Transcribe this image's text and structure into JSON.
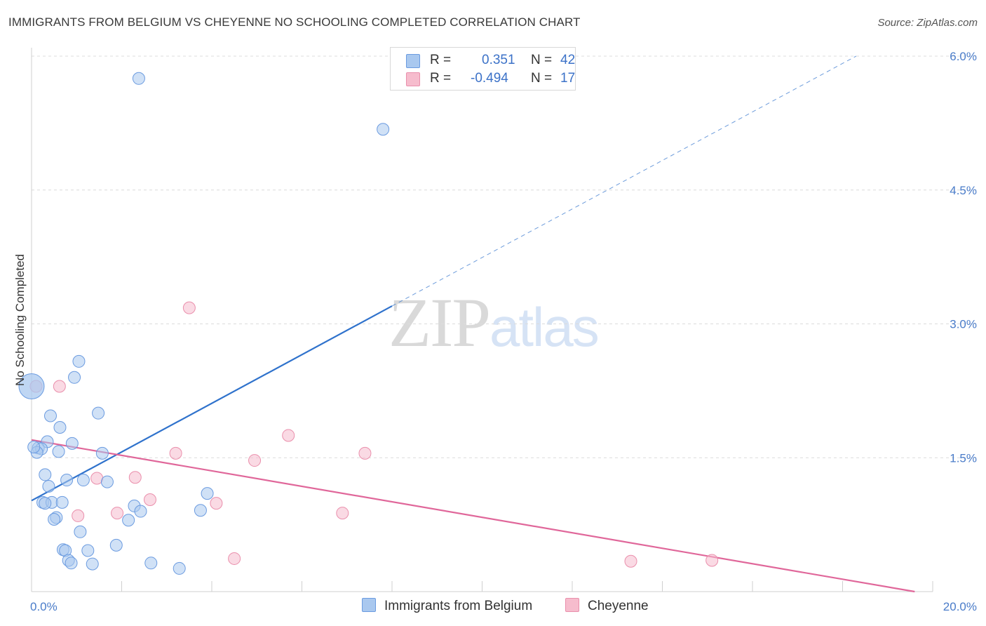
{
  "header": {
    "title": "IMMIGRANTS FROM BELGIUM VS CHEYENNE NO SCHOOLING COMPLETED CORRELATION CHART",
    "source": "Source: ZipAtlas.com"
  },
  "watermark": {
    "zip": "ZIP",
    "atlas": "atlas"
  },
  "legend": {
    "r_label": "R =",
    "n_label": "N =",
    "rows": [
      {
        "name": "Immigrants from Belgium",
        "r": "0.351",
        "n": "42"
      },
      {
        "name": "Cheyenne",
        "r": "-0.494",
        "n": "17"
      }
    ]
  },
  "colors": {
    "blue_fill": "#a9c8ef",
    "blue_stroke": "#6b9be0",
    "blue_line": "#2f72cc",
    "pink_fill": "#f6bccd",
    "pink_stroke": "#ea8fac",
    "pink_line": "#e0679a",
    "grid": "#dcdcdc",
    "tick_text": "#4a7cc9"
  },
  "chart_data": {
    "type": "scatter",
    "title": "IMMIGRANTS FROM BELGIUM VS CHEYENNE NO SCHOOLING COMPLETED CORRELATION CHART",
    "xlabel": "",
    "ylabel": "No Schooling Completed",
    "xlim": [
      0,
      20
    ],
    "ylim": [
      0,
      6.0
    ],
    "x_tick_labels": [
      "0.0%",
      "20.0%"
    ],
    "y_ticks": [
      1.5,
      3.0,
      4.5,
      6.0
    ],
    "y_tick_labels": [
      "1.5%",
      "3.0%",
      "4.5%",
      "6.0%"
    ],
    "grid": "horizontal dashed",
    "legend_position": "top-center",
    "series": [
      {
        "name": "Immigrants from Belgium",
        "color": "#a9c8ef",
        "r": 0.351,
        "n": 42,
        "trend": {
          "x": [
            0,
            8.0
          ],
          "y": [
            1.02,
            3.2
          ],
          "extended_to_x": 18.3,
          "extended_y": 6.0
        },
        "points": [
          {
            "x": 2.38,
            "y": 5.75
          },
          {
            "x": 7.8,
            "y": 5.18
          },
          {
            "x": 0.0,
            "y": 2.3,
            "large": true
          },
          {
            "x": 1.05,
            "y": 2.58
          },
          {
            "x": 0.95,
            "y": 2.4
          },
          {
            "x": 1.48,
            "y": 2.0
          },
          {
            "x": 0.42,
            "y": 1.97
          },
          {
            "x": 0.63,
            "y": 1.84
          },
          {
            "x": 0.35,
            "y": 1.68
          },
          {
            "x": 0.9,
            "y": 1.66
          },
          {
            "x": 0.15,
            "y": 1.61
          },
          {
            "x": 0.22,
            "y": 1.6
          },
          {
            "x": 0.12,
            "y": 1.56
          },
          {
            "x": 0.6,
            "y": 1.57
          },
          {
            "x": 1.57,
            "y": 1.55
          },
          {
            "x": 0.3,
            "y": 1.31
          },
          {
            "x": 0.78,
            "y": 1.25
          },
          {
            "x": 1.15,
            "y": 1.25
          },
          {
            "x": 1.68,
            "y": 1.23
          },
          {
            "x": 0.38,
            "y": 1.18
          },
          {
            "x": 3.9,
            "y": 1.1
          },
          {
            "x": 0.25,
            "y": 1.0
          },
          {
            "x": 0.45,
            "y": 1.0
          },
          {
            "x": 0.68,
            "y": 1.0
          },
          {
            "x": 0.3,
            "y": 0.99
          },
          {
            "x": 2.28,
            "y": 0.96
          },
          {
            "x": 2.42,
            "y": 0.9
          },
          {
            "x": 3.75,
            "y": 0.91
          },
          {
            "x": 0.55,
            "y": 0.83
          },
          {
            "x": 0.5,
            "y": 0.81
          },
          {
            "x": 2.15,
            "y": 0.8
          },
          {
            "x": 1.08,
            "y": 0.67
          },
          {
            "x": 1.88,
            "y": 0.52
          },
          {
            "x": 0.7,
            "y": 0.47
          },
          {
            "x": 0.75,
            "y": 0.46
          },
          {
            "x": 1.25,
            "y": 0.46
          },
          {
            "x": 0.82,
            "y": 0.35
          },
          {
            "x": 0.88,
            "y": 0.32
          },
          {
            "x": 1.35,
            "y": 0.31
          },
          {
            "x": 2.65,
            "y": 0.32
          },
          {
            "x": 3.28,
            "y": 0.26
          },
          {
            "x": 0.05,
            "y": 1.62
          }
        ]
      },
      {
        "name": "Cheyenne",
        "color": "#f6bccd",
        "r": -0.494,
        "n": 17,
        "trend": {
          "x": [
            0,
            19.6
          ],
          "y": [
            1.7,
            0.0
          ]
        },
        "points": [
          {
            "x": 3.5,
            "y": 3.18
          },
          {
            "x": 0.62,
            "y": 2.3
          },
          {
            "x": 5.7,
            "y": 1.75
          },
          {
            "x": 3.2,
            "y": 1.55
          },
          {
            "x": 7.4,
            "y": 1.55
          },
          {
            "x": 4.95,
            "y": 1.47
          },
          {
            "x": 1.45,
            "y": 1.27
          },
          {
            "x": 2.3,
            "y": 1.28
          },
          {
            "x": 2.63,
            "y": 1.03
          },
          {
            "x": 4.1,
            "y": 0.99
          },
          {
            "x": 1.9,
            "y": 0.88
          },
          {
            "x": 6.9,
            "y": 0.88
          },
          {
            "x": 1.03,
            "y": 0.85
          },
          {
            "x": 4.5,
            "y": 0.37
          },
          {
            "x": 13.3,
            "y": 0.34
          },
          {
            "x": 15.1,
            "y": 0.35
          },
          {
            "x": 0.1,
            "y": 2.3
          }
        ]
      }
    ]
  }
}
